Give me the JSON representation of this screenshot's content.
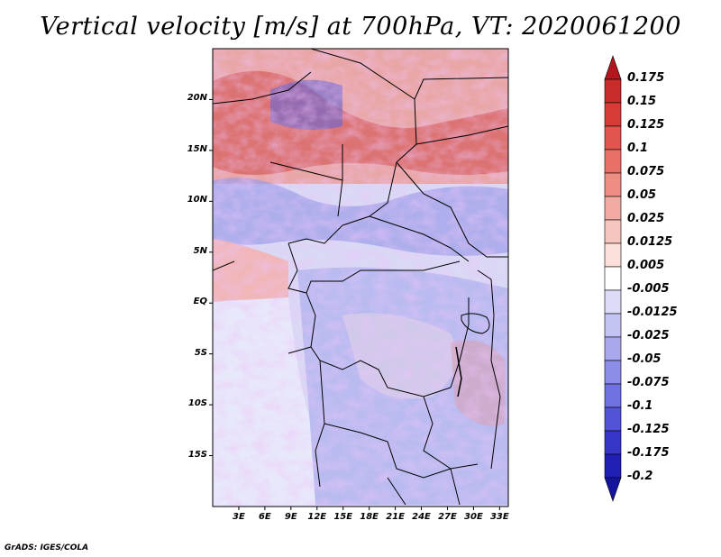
{
  "title": "Vertical velocity [m/s] at 700hPa, VT: 2020061200",
  "credit": "GrADS: IGES/COLA",
  "map": {
    "lat_labels": [
      "20N",
      "15N",
      "10N",
      "5N",
      "EQ",
      "5S",
      "10S",
      "15S"
    ],
    "lon_labels": [
      "3E",
      "6E",
      "9E",
      "12E",
      "15E",
      "18E",
      "21E",
      "24E",
      "27E",
      "30E",
      "33E"
    ],
    "lat_values": [
      20,
      15,
      10,
      5,
      0,
      -5,
      -10,
      -15
    ],
    "lon_values": [
      3,
      6,
      9,
      12,
      15,
      18,
      21,
      24,
      27,
      30,
      33
    ],
    "lat_range": [
      -20,
      25
    ],
    "lon_range": [
      0,
      34
    ],
    "field_regions": {
      "north_rising_band": "red",
      "southwest_ocean": "light-blue",
      "interior": "mixed"
    }
  },
  "colorbar": {
    "labels": [
      "0.175",
      "0.15",
      "0.125",
      "0.1",
      "0.075",
      "0.05",
      "0.025",
      "0.0125",
      "0.005",
      "-0.005",
      "-0.0125",
      "-0.025",
      "-0.05",
      "-0.075",
      "-0.1",
      "-0.125",
      "-0.175",
      "-0.2"
    ],
    "colors": [
      "#b3161c",
      "#c92a2a",
      "#d83b36",
      "#e0564f",
      "#e87167",
      "#ee8d84",
      "#f3aaa2",
      "#f7c5bf",
      "#fbe0dc",
      "#ffffff",
      "#dcdcf8",
      "#c3c3f4",
      "#a8a8ef",
      "#8c8ce9",
      "#7070e2",
      "#5353d8",
      "#3535c8",
      "#2020b4",
      "#14149e"
    ]
  }
}
